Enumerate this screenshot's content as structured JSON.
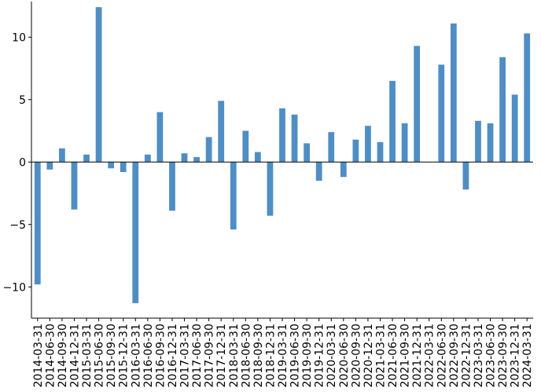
{
  "chart_data": {
    "type": "bar",
    "title": "",
    "xlabel": "",
    "ylabel": "",
    "ylim": [
      -12.5,
      12.85
    ],
    "yticks": [
      -10,
      -5,
      0,
      5,
      10
    ],
    "ytick_labels": [
      "−10",
      "−5",
      "0",
      "5",
      "10"
    ],
    "grid": false,
    "legend": "none",
    "bar_color": "#4f8ec4",
    "categories": [
      "2014-03-31",
      "2014-06-30",
      "2014-09-30",
      "2014-12-31",
      "2015-03-31",
      "2015-06-30",
      "2015-09-30",
      "2015-12-31",
      "2016-03-31",
      "2016-06-30",
      "2016-09-30",
      "2016-12-31",
      "2017-03-31",
      "2017-06-30",
      "2017-09-30",
      "2017-12-31",
      "2018-03-31",
      "2018-06-30",
      "2018-09-30",
      "2018-12-31",
      "2019-03-31",
      "2019-06-30",
      "2019-09-30",
      "2019-12-31",
      "2020-03-31",
      "2020-06-30",
      "2020-09-30",
      "2020-12-31",
      "2021-03-31",
      "2021-06-30",
      "2021-09-30",
      "2021-12-31",
      "2022-03-31",
      "2022-06-30",
      "2022-09-30",
      "2022-12-31",
      "2023-03-31",
      "2023-06-30",
      "2023-09-30",
      "2023-12-31",
      "2024-03-31"
    ],
    "values": [
      -9.8,
      -0.6,
      1.1,
      -3.8,
      0.6,
      12.4,
      -0.5,
      -0.8,
      -11.3,
      0.6,
      4.0,
      -3.9,
      0.7,
      0.4,
      2.0,
      4.9,
      -5.4,
      2.5,
      0.8,
      -4.3,
      4.3,
      3.8,
      1.5,
      -1.5,
      2.4,
      -1.2,
      1.8,
      2.9,
      1.6,
      6.5,
      3.1,
      9.3,
      0.0,
      7.8,
      11.1,
      -2.2,
      3.3,
      3.1,
      8.4,
      5.4,
      10.3
    ]
  }
}
